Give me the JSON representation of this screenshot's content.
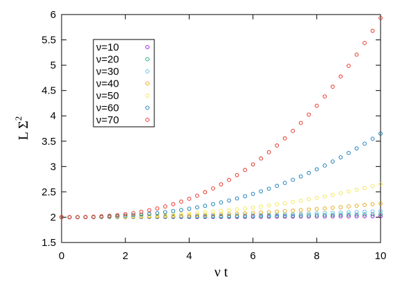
{
  "chart_data": {
    "type": "scatter",
    "title": "",
    "xlabel": "ν t",
    "ylabel_main": "L Σ",
    "ylabel_sup": "2",
    "xlim": [
      0,
      10
    ],
    "ylim": [
      1.5,
      6
    ],
    "xticks": [
      "0",
      "2",
      "4",
      "6",
      "8",
      "10"
    ],
    "yticks": [
      "1.5",
      "2",
      "2.5",
      "3",
      "3.5",
      "4",
      "4.5",
      "5",
      "5.5",
      "6"
    ],
    "grid": false,
    "legend_position": "top-left",
    "marker": "open-circle",
    "x": [
      0,
      0.25,
      0.5,
      0.75,
      1,
      1.25,
      1.5,
      1.75,
      2,
      2.25,
      2.5,
      2.75,
      3,
      3.25,
      3.5,
      3.75,
      4,
      4.25,
      4.5,
      4.75,
      5,
      5.25,
      5.5,
      5.75,
      6,
      6.25,
      6.5,
      6.75,
      7,
      7.25,
      7.5,
      7.75,
      8,
      8.25,
      8.5,
      8.75,
      9,
      9.25,
      9.5,
      9.75,
      10
    ],
    "series": [
      {
        "name": "ν=10",
        "color": "#9400d3",
        "end_value": 2.02,
        "exponent": 2.0
      },
      {
        "name": "ν=20",
        "color": "#009e73",
        "end_value": 2.06,
        "exponent": 2.0
      },
      {
        "name": "ν=30",
        "color": "#56b4e9",
        "end_value": 2.12,
        "exponent": 2.1
      },
      {
        "name": "ν=40",
        "color": "#e69f00",
        "end_value": 2.27,
        "exponent": 2.3
      },
      {
        "name": "ν=50",
        "color": "#f0e442",
        "end_value": 2.65,
        "exponent": 2.4
      },
      {
        "name": "ν=60",
        "color": "#0072b2",
        "end_value": 3.65,
        "exponent": 2.5
      },
      {
        "name": "ν=70",
        "color": "#e51e10",
        "end_value": 5.93,
        "exponent": 2.6
      }
    ],
    "y_start": 2.0
  }
}
